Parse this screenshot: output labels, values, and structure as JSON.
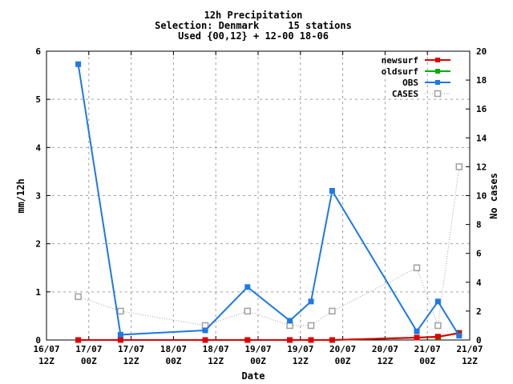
{
  "chart_data": {
    "type": "line",
    "title": [
      "12h Precipitation",
      "Selection: Denmark     15 stations",
      "Used {00,12} + 12-00 18-06"
    ],
    "xlabel": "Date",
    "ylabel": "mm/12h",
    "y2label": "No cases",
    "ylim": [
      0,
      6
    ],
    "y2lim": [
      0,
      20
    ],
    "yticks": [
      "0",
      "1",
      "2",
      "3",
      "4",
      "5",
      "6"
    ],
    "y2ticks": [
      "0",
      "2",
      "4",
      "6",
      "8",
      "10",
      "12",
      "14",
      "16",
      "18",
      "20"
    ],
    "xlim_hours": [
      0,
      120
    ],
    "xticks": [
      {
        "line1": "16/07",
        "line2": "12Z",
        "hours": 0
      },
      {
        "line1": "17/07",
        "line2": "00Z",
        "hours": 12
      },
      {
        "line1": "17/07",
        "line2": "12Z",
        "hours": 24
      },
      {
        "line1": "18/07",
        "line2": "00Z",
        "hours": 36
      },
      {
        "line1": "18/07",
        "line2": "12Z",
        "hours": 48
      },
      {
        "line1": "19/07",
        "line2": "00Z",
        "hours": 60
      },
      {
        "line1": "19/07",
        "line2": "12Z",
        "hours": 72
      },
      {
        "line1": "20/07",
        "line2": "00Z",
        "hours": 84
      },
      {
        "line1": "20/07",
        "line2": "12Z",
        "hours": 96
      },
      {
        "line1": "21/07",
        "line2": "00Z",
        "hours": 108
      },
      {
        "line1": "21/07",
        "line2": "12Z",
        "hours": 120
      }
    ],
    "grid": true,
    "legend_position": "top-right",
    "series": [
      {
        "name": "newsurf",
        "axis": "left",
        "color": "#e00000",
        "style": "solid",
        "marker": "filled-square",
        "hours": [
          9,
          21,
          45,
          57,
          69,
          75,
          81,
          105,
          111,
          117
        ],
        "values": [
          0,
          0,
          0,
          0,
          0,
          0,
          0,
          0.05,
          0.07,
          0.14
        ]
      },
      {
        "name": "oldsurf",
        "axis": "left",
        "color": "#00b000",
        "style": "solid",
        "marker": "filled-square",
        "hours": [
          9,
          21,
          45,
          57,
          69,
          75,
          81,
          105,
          111,
          117
        ],
        "values": [
          0,
          0,
          0,
          0,
          0,
          0,
          0,
          0.05,
          0.06,
          0.15
        ]
      },
      {
        "name": "OBS",
        "axis": "left",
        "color": "#1e78e6",
        "style": "solid",
        "marker": "filled-square",
        "hours": [
          9,
          21,
          45,
          57,
          69,
          75,
          81,
          105,
          111,
          117
        ],
        "values": [
          5.73,
          0.11,
          0.2,
          1.1,
          0.4,
          0.8,
          3.1,
          0.18,
          0.8,
          0.09
        ]
      },
      {
        "name": "CASES",
        "axis": "right",
        "color": "#a0a0a0",
        "style": "dotted",
        "marker": "open-square",
        "hours": [
          9,
          21,
          45,
          57,
          69,
          75,
          81,
          105,
          111,
          117
        ],
        "values": [
          3,
          2,
          1,
          2,
          1,
          1,
          2,
          5,
          1,
          12
        ]
      }
    ]
  }
}
